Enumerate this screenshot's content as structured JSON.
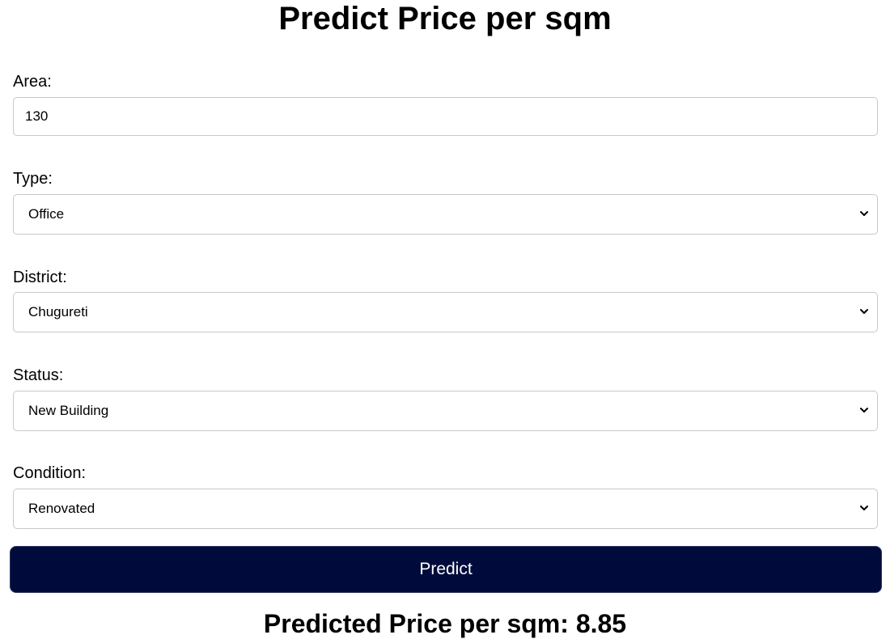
{
  "page": {
    "title": "Predict Price per sqm"
  },
  "form": {
    "area": {
      "label": "Area:",
      "value": "130"
    },
    "type": {
      "label": "Type:",
      "selected": "Office"
    },
    "district": {
      "label": "District:",
      "selected": "Chugureti"
    },
    "status": {
      "label": "Status:",
      "selected": "New Building"
    },
    "condition": {
      "label": "Condition:",
      "selected": "Renovated"
    },
    "predict_label": "Predict"
  },
  "result": {
    "text": "Predicted Price per sqm: 8.85"
  },
  "colors": {
    "button_background": "#000b3b",
    "border": "#c8c8c8"
  },
  "icons": {
    "dropdown": "chevron-down-icon"
  }
}
